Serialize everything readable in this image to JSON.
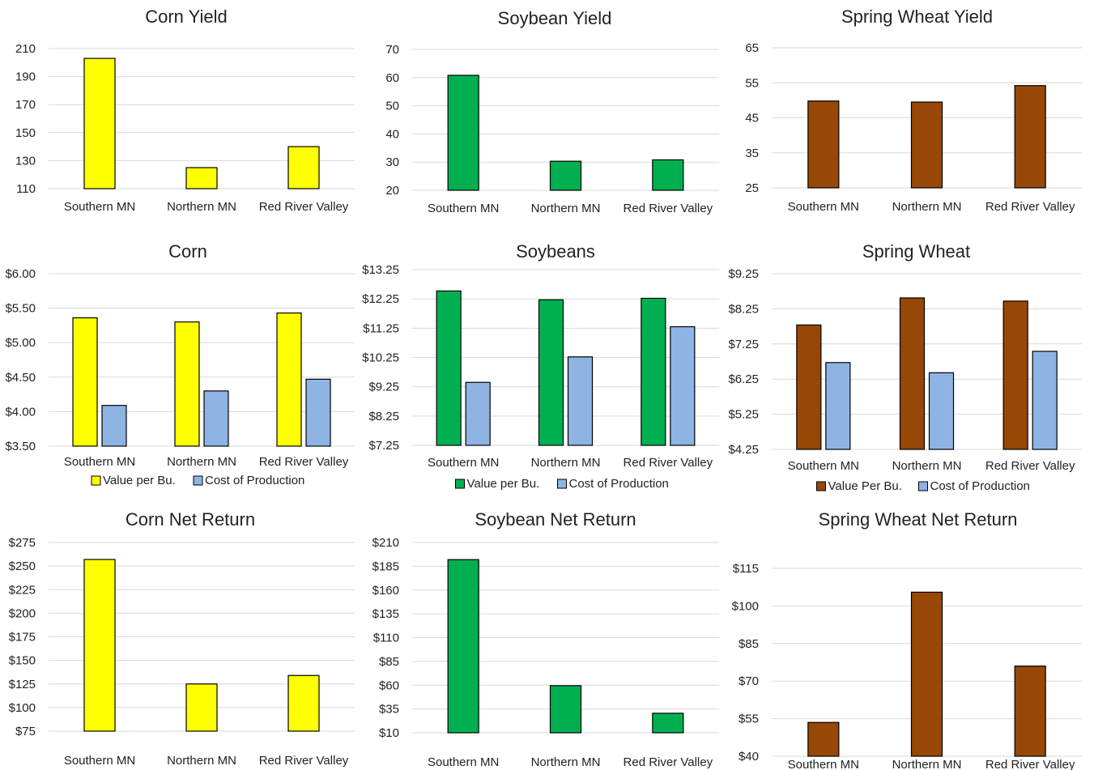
{
  "colors": {
    "corn": "#ffff00",
    "soy": "#00b050",
    "wheat": "#974706",
    "cost": "#8eb4e3",
    "grid": "#d9d9d9",
    "text": "#222222"
  },
  "chart_data": [
    {
      "type": "bar",
      "title": "Corn Yield",
      "categories": [
        "Southern MN",
        "Northern MN",
        "Red River Valley"
      ],
      "ylim": [
        110,
        210
      ],
      "yticks": [
        "110",
        "130",
        "150",
        "170",
        "190",
        "210"
      ],
      "series": [
        {
          "values": [
            203,
            125,
            140
          ],
          "color": "#ffff00"
        }
      ]
    },
    {
      "type": "bar",
      "title": "Soybean Yield",
      "categories": [
        "Southern MN",
        "Northern MN",
        "Red River Valley"
      ],
      "ylim": [
        20,
        70
      ],
      "yticks": [
        "20",
        "30",
        "40",
        "50",
        "60",
        "70"
      ],
      "series": [
        {
          "values": [
            60.8,
            30.3,
            30.8
          ],
          "color": "#00b050"
        }
      ]
    },
    {
      "type": "bar",
      "title": "Spring Wheat Yield",
      "categories": [
        "Southern MN",
        "Northern MN",
        "Red River Valley"
      ],
      "ylim": [
        25,
        65
      ],
      "yticks": [
        "25",
        "35",
        "45",
        "55",
        "65"
      ],
      "series": [
        {
          "values": [
            49.8,
            49.5,
            54.2
          ],
          "color": "#974706"
        }
      ]
    },
    {
      "type": "bar",
      "title": "Corn",
      "categories": [
        "Southern MN",
        "Northern MN",
        "Red River Valley"
      ],
      "ylim": [
        3.5,
        6.0
      ],
      "yticks": [
        "$3.50",
        "$4.00",
        "$4.50",
        "$5.00",
        "$5.50",
        "$6.00"
      ],
      "series": [
        {
          "name": "Value per Bu.",
          "values": [
            5.36,
            5.3,
            5.43
          ],
          "color": "#ffff00"
        },
        {
          "name": "Cost of Production",
          "values": [
            4.09,
            4.3,
            4.47
          ],
          "color": "#8eb4e3"
        }
      ]
    },
    {
      "type": "bar",
      "title": "Soybeans",
      "categories": [
        "Southern MN",
        "Northern MN",
        "Red River Valley"
      ],
      "ylim": [
        7.25,
        13.25
      ],
      "yticks": [
        "$7.25",
        "$8.25",
        "$9.25",
        "$10.25",
        "$11.25",
        "$12.25",
        "$13.25"
      ],
      "series": [
        {
          "name": "Value per Bu.",
          "values": [
            12.52,
            12.22,
            12.27
          ],
          "color": "#00b050"
        },
        {
          "name": "Cost of Production",
          "values": [
            9.4,
            10.27,
            11.3
          ],
          "color": "#8eb4e3"
        }
      ]
    },
    {
      "type": "bar",
      "title": "Spring Wheat",
      "categories": [
        "Southern MN",
        "Northern MN",
        "Red River Valley"
      ],
      "ylim": [
        4.25,
        9.25
      ],
      "yticks": [
        "$4.25",
        "$5.25",
        "$6.25",
        "$7.25",
        "$8.25",
        "$9.25"
      ],
      "series": [
        {
          "name": "Value Per Bu.",
          "values": [
            7.79,
            8.56,
            8.47
          ],
          "color": "#974706"
        },
        {
          "name": "Cost of Production",
          "values": [
            6.72,
            6.43,
            7.04
          ],
          "color": "#8eb4e3"
        }
      ]
    },
    {
      "type": "bar",
      "title": "Corn Net Return",
      "categories": [
        "Southern MN",
        "Northern MN",
        "Red River Valley"
      ],
      "ylim": [
        75,
        275
      ],
      "yticks": [
        "$75",
        "$100",
        "$125",
        "$150",
        "$175",
        "$200",
        "$225",
        "$250",
        "$275"
      ],
      "series": [
        {
          "values": [
            257,
            125,
            134
          ],
          "color": "#ffff00"
        }
      ]
    },
    {
      "type": "bar",
      "title": "Soybean Net Return",
      "categories": [
        "Southern MN",
        "Northern MN",
        "Red River Valley"
      ],
      "ylim": [
        10,
        210
      ],
      "yticks": [
        "$10",
        "$35",
        "$60",
        "$85",
        "$110",
        "$135",
        "$160",
        "$185",
        "$210"
      ],
      "series": [
        {
          "values": [
            192,
            59.5,
            30.5
          ],
          "color": "#00b050"
        }
      ]
    },
    {
      "type": "bar",
      "title": "Spring Wheat Net Return",
      "categories": [
        "Southern MN",
        "Northern MN",
        "Red River Valley"
      ],
      "ylim": [
        40,
        115
      ],
      "yticks": [
        "$40",
        "$55",
        "$70",
        "$85",
        "$100",
        "$115"
      ],
      "series": [
        {
          "values": [
            53.5,
            105.5,
            76
          ],
          "color": "#974706"
        }
      ]
    }
  ]
}
